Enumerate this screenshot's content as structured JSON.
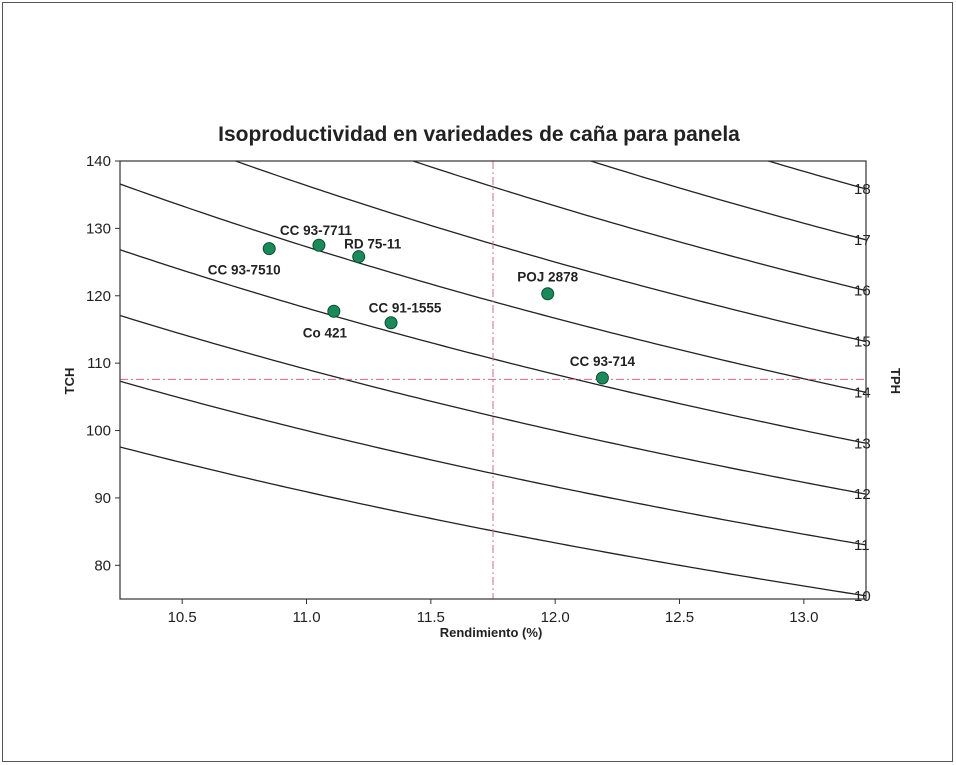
{
  "chart_data": {
    "type": "scatter",
    "title": "Isoproductividad en variedades de caña para panela",
    "xlabel": "Rendimiento (%)",
    "ylabel": "TCH",
    "y2label": "TPH",
    "xlim": [
      10.25,
      13.25
    ],
    "ylim": [
      75,
      140
    ],
    "xticks": [
      "10.5",
      "11.0",
      "11.5",
      "12.0",
      "12.5",
      "13.0"
    ],
    "yticks": [
      "80",
      "90",
      "100",
      "110",
      "120",
      "130",
      "140"
    ],
    "isolines": {
      "label_x": 13.25,
      "levels": [
        {
          "tph": 10,
          "label": "10"
        },
        {
          "tph": 11,
          "label": "11"
        },
        {
          "tph": 12,
          "label": "12"
        },
        {
          "tph": 13,
          "label": "13"
        },
        {
          "tph": 14,
          "label": "14"
        },
        {
          "tph": 15,
          "label": "15"
        },
        {
          "tph": 16,
          "label": "16"
        },
        {
          "tph": 17,
          "label": "17"
        },
        {
          "tph": 18,
          "label": "18"
        }
      ]
    },
    "reference_lines": {
      "x": 11.75,
      "y": 107.6
    },
    "points": [
      {
        "label": "CC 93-7711",
        "x": 11.05,
        "y": 127.5,
        "label_pos": "above"
      },
      {
        "label": "CC 93-7510",
        "x": 10.85,
        "y": 127.0,
        "label_pos": "below"
      },
      {
        "label": "RD 75-11",
        "x": 11.21,
        "y": 125.8,
        "label_pos": "above"
      },
      {
        "label": "POJ 2878",
        "x": 11.97,
        "y": 120.3,
        "label_pos": "above"
      },
      {
        "label": "Co 421",
        "x": 11.11,
        "y": 117.7,
        "label_pos": "below"
      },
      {
        "label": "CC 91-1555",
        "x": 11.34,
        "y": 116.0,
        "label_pos": "above-right"
      },
      {
        "label": "CC 93-714",
        "x": 12.19,
        "y": 107.8,
        "label_pos": "above"
      }
    ],
    "colors": {
      "point": "#1a8a5a",
      "isoline": "#222222",
      "reference": "#d36a86",
      "axis": "#333333"
    }
  }
}
